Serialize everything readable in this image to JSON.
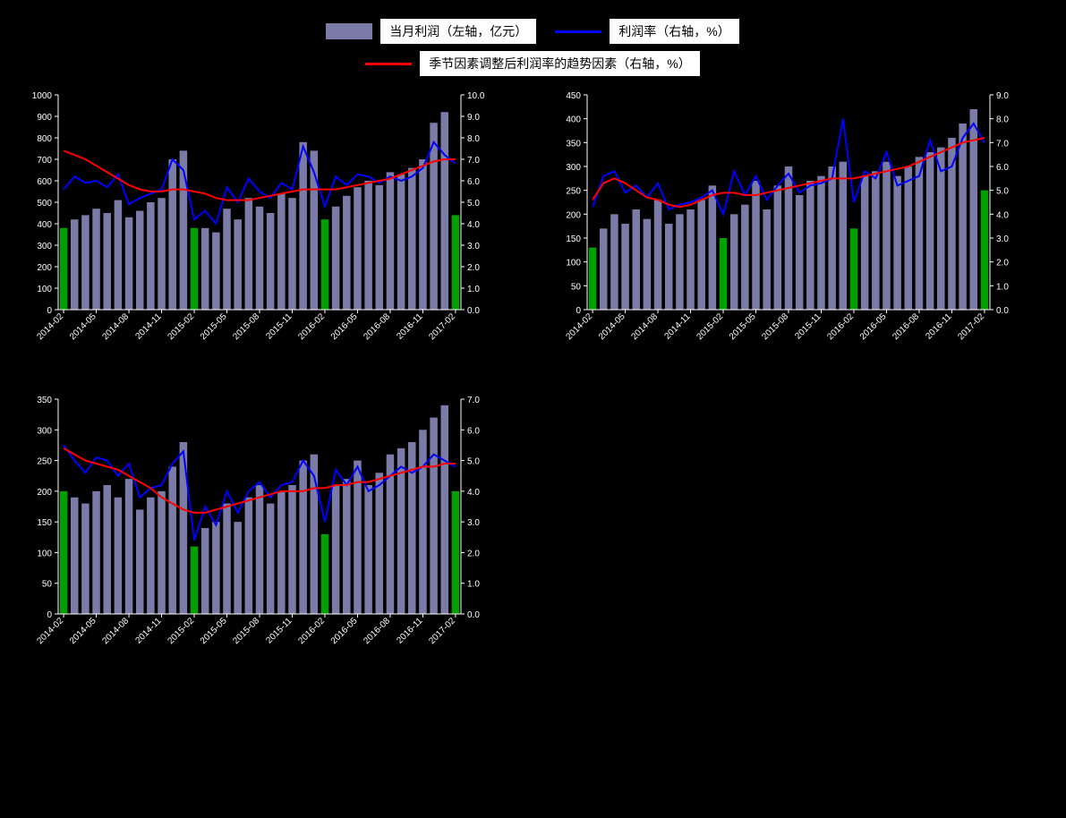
{
  "legend": {
    "bar_label": "当月利润（左轴，亿元）",
    "bar_color": "#7b7ba8",
    "line1_label": "利润率（右轴，%）",
    "line1_color": "#0000ff",
    "line2_label": "季节因素调整后利润率的趋势因素（右轴，%）",
    "line2_color": "#ff0000",
    "box_bg": "#ffffff",
    "box_border": "#000000",
    "text_color": "#000000"
  },
  "global": {
    "background_color": "#000000",
    "axis_text_color": "#ffffff",
    "axis_fontsize": 10,
    "title_fontsize": 13,
    "grid_color": "none",
    "highlight_bar_color": "#00a000",
    "normal_bar_color": "#7b7ba8",
    "line_blue_color": "#0000ff",
    "line_red_color": "#ff0000",
    "line_width": 2,
    "bar_width": 0.7
  },
  "charts": [
    {
      "id": "c1",
      "title": "",
      "layout": {
        "row": 0,
        "col": 0
      },
      "x_labels": [
        "2014-02",
        "2014-05",
        "2014-08",
        "2014-11",
        "2015-02",
        "2015-05",
        "2015-08",
        "2015-11",
        "2016-02",
        "2016-05",
        "2016-08",
        "2016-11",
        "2017-02"
      ],
      "left_axis": {
        "min": 0,
        "max": 1000,
        "step": 100,
        "label": ""
      },
      "right_axis": {
        "min": 0,
        "max": 10.0,
        "step": 1.0,
        "label": ""
      },
      "n_points": 37,
      "bars": [
        380,
        420,
        440,
        470,
        450,
        510,
        430,
        460,
        500,
        520,
        700,
        740,
        380,
        380,
        360,
        470,
        420,
        520,
        480,
        450,
        540,
        520,
        780,
        740,
        420,
        480,
        530,
        570,
        600,
        580,
        640,
        630,
        660,
        700,
        870,
        920,
        440
      ],
      "highlight_idx": [
        0,
        12,
        24,
        36
      ],
      "line_blue": [
        5.6,
        6.2,
        5.9,
        6.0,
        5.7,
        6.3,
        4.9,
        5.2,
        5.4,
        5.6,
        7.0,
        6.5,
        4.2,
        4.6,
        4.0,
        5.7,
        5.0,
        6.1,
        5.5,
        5.2,
        5.9,
        5.6,
        7.6,
        6.4,
        4.8,
        6.2,
        5.8,
        6.3,
        6.2,
        5.9,
        6.2,
        6.0,
        6.2,
        6.6,
        7.8,
        7.2,
        6.8
      ],
      "line_red": [
        7.4,
        7.2,
        7.0,
        6.7,
        6.4,
        6.1,
        5.8,
        5.6,
        5.5,
        5.5,
        5.6,
        5.6,
        5.5,
        5.4,
        5.2,
        5.1,
        5.1,
        5.1,
        5.2,
        5.3,
        5.4,
        5.5,
        5.6,
        5.6,
        5.6,
        5.6,
        5.7,
        5.8,
        5.9,
        6.0,
        6.1,
        6.3,
        6.5,
        6.7,
        6.9,
        7.0,
        7.0
      ]
    },
    {
      "id": "c2",
      "title": "",
      "layout": {
        "row": 0,
        "col": 1
      },
      "x_labels": [
        "2014-02",
        "2014-05",
        "2014-08",
        "2014-11",
        "2015-02",
        "2015-05",
        "2015-08",
        "2015-11",
        "2016-02",
        "2016-05",
        "2016-08",
        "2016-11",
        "2017-02"
      ],
      "left_axis": {
        "min": 0,
        "max": 450,
        "step": 50,
        "label": ""
      },
      "right_axis": {
        "min": 0,
        "max": 9.0,
        "step": 1.0,
        "label": ""
      },
      "n_points": 37,
      "bars": [
        130,
        170,
        200,
        180,
        210,
        190,
        230,
        180,
        200,
        210,
        230,
        260,
        150,
        200,
        220,
        270,
        210,
        260,
        300,
        240,
        270,
        280,
        300,
        310,
        170,
        280,
        290,
        310,
        280,
        300,
        320,
        330,
        340,
        360,
        390,
        420,
        250
      ],
      "highlight_idx": [
        0,
        12,
        24,
        36
      ],
      "line_blue": [
        4.3,
        5.6,
        5.8,
        4.9,
        5.2,
        4.7,
        5.3,
        4.2,
        4.4,
        4.5,
        4.7,
        5.0,
        4.0,
        5.8,
        4.8,
        5.6,
        4.6,
        5.2,
        5.7,
        4.9,
        5.2,
        5.3,
        5.5,
        8.0,
        4.5,
        5.8,
        5.5,
        6.6,
        5.2,
        5.4,
        5.6,
        7.1,
        5.8,
        6.0,
        7.2,
        7.8,
        7.0
      ],
      "line_red": [
        4.6,
        5.3,
        5.5,
        5.3,
        5.0,
        4.7,
        4.6,
        4.4,
        4.3,
        4.4,
        4.6,
        4.8,
        4.9,
        4.9,
        4.8,
        4.8,
        4.9,
        5.0,
        5.1,
        5.2,
        5.3,
        5.4,
        5.5,
        5.5,
        5.5,
        5.6,
        5.7,
        5.8,
        5.9,
        6.0,
        6.2,
        6.4,
        6.6,
        6.8,
        7.0,
        7.1,
        7.2
      ]
    },
    {
      "id": "c3",
      "title": "",
      "layout": {
        "row": 1,
        "col": 0
      },
      "x_labels": [
        "2014-02",
        "2014-05",
        "2014-08",
        "2014-11",
        "2015-02",
        "2015-05",
        "2015-08",
        "2015-11",
        "2016-02",
        "2016-05",
        "2016-08",
        "2016-11",
        "2017-02"
      ],
      "left_axis": {
        "min": 0,
        "max": 350,
        "step": 50,
        "label": ""
      },
      "right_axis": {
        "min": 0,
        "max": 7.0,
        "step": 1.0,
        "label": ""
      },
      "n_points": 37,
      "bars": [
        200,
        190,
        180,
        200,
        210,
        190,
        220,
        170,
        190,
        200,
        240,
        280,
        110,
        140,
        150,
        180,
        150,
        190,
        210,
        180,
        200,
        210,
        250,
        260,
        130,
        210,
        220,
        250,
        210,
        230,
        260,
        270,
        280,
        300,
        320,
        340,
        200
      ],
      "highlight_idx": [
        0,
        12,
        24,
        36
      ],
      "line_blue": [
        5.5,
        5.0,
        4.6,
        5.1,
        5.0,
        4.5,
        4.9,
        3.8,
        4.1,
        4.2,
        4.9,
        5.3,
        2.4,
        3.5,
        2.9,
        4.0,
        3.3,
        4.0,
        4.3,
        3.8,
        4.2,
        4.3,
        5.0,
        4.5,
        3.0,
        4.7,
        4.2,
        4.8,
        4.0,
        4.2,
        4.5,
        4.8,
        4.6,
        4.8,
        5.2,
        5.0,
        4.8
      ],
      "line_red": [
        5.4,
        5.2,
        5.0,
        4.9,
        4.8,
        4.7,
        4.5,
        4.3,
        4.1,
        3.8,
        3.6,
        3.4,
        3.3,
        3.3,
        3.4,
        3.5,
        3.6,
        3.7,
        3.8,
        3.9,
        4.0,
        4.0,
        4.0,
        4.1,
        4.1,
        4.2,
        4.2,
        4.3,
        4.3,
        4.4,
        4.5,
        4.6,
        4.7,
        4.8,
        4.8,
        4.9,
        4.9
      ]
    }
  ]
}
